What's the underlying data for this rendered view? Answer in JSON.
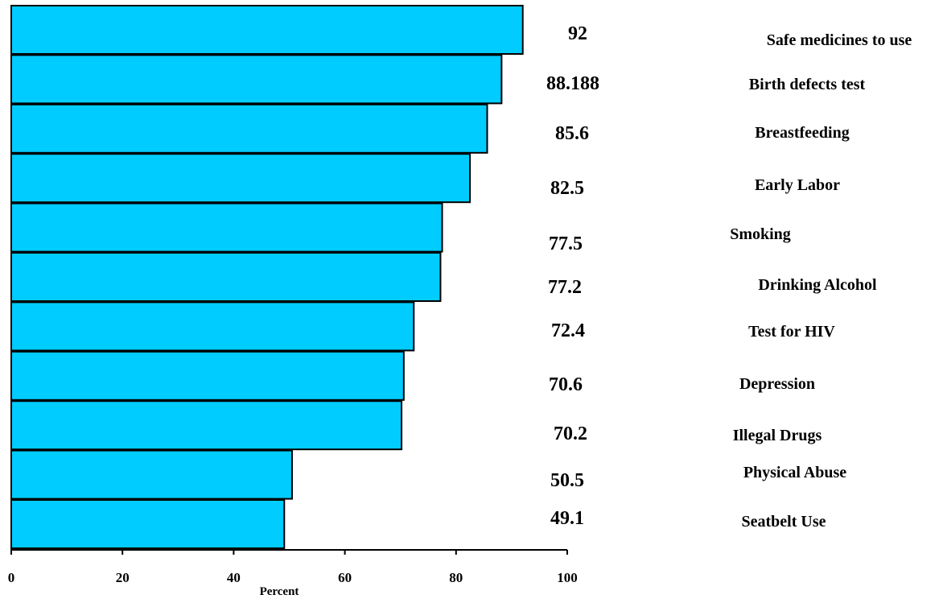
{
  "chart_data": {
    "type": "bar",
    "orientation": "horizontal",
    "categories": [
      "Safe medicines to use",
      "Birth defects test",
      "Breastfeeding",
      "Early Labor",
      "Smoking",
      "Drinking Alcohol",
      "Test for HIV",
      "Depression",
      "Illegal Drugs",
      "Physical Abuse",
      "Seatbelt Use"
    ],
    "values": [
      92,
      88.188,
      85.6,
      82.5,
      77.5,
      77.2,
      72.4,
      70.6,
      70.2,
      50.5,
      49.1
    ],
    "value_labels": [
      "92",
      "88.188",
      "85.6",
      "82.5",
      "77.5",
      "77.2",
      "72.4",
      "70.6",
      "70.2",
      "50.5",
      "49.1"
    ],
    "xlabel": "Percent",
    "xlim": [
      0,
      100
    ],
    "xticks": [
      0,
      20,
      40,
      60,
      80,
      100
    ],
    "grid": false,
    "bar_color": "#00CCFF",
    "bar_edge_color": "#000000"
  }
}
